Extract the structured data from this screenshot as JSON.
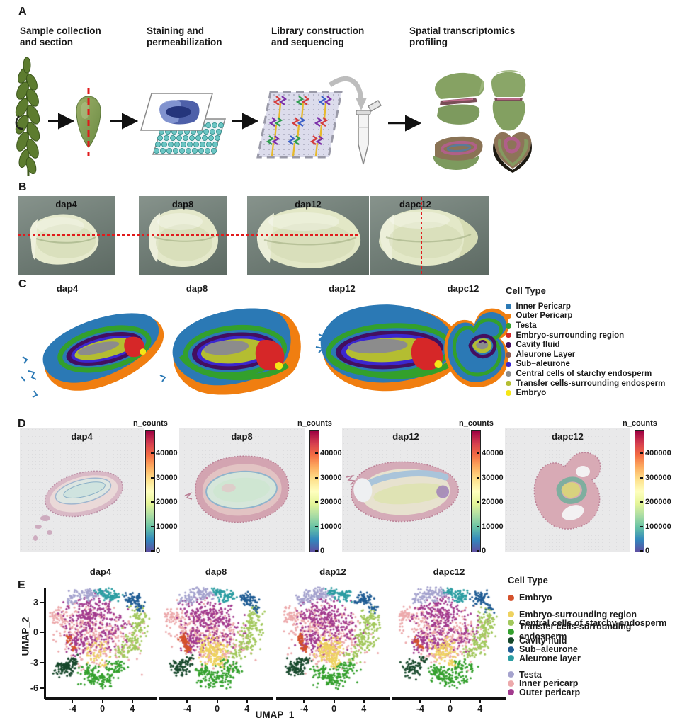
{
  "panel_a": {
    "label": "A",
    "steps": [
      {
        "line1": "Sample collection",
        "line2": " and section"
      },
      {
        "line1": "Staining and",
        "line2": "permeabilization"
      },
      {
        "line1": "Library construction",
        "line2": " and sequencing"
      },
      {
        "line1": "Spatial transcriptomics",
        "line2": "profiling"
      }
    ]
  },
  "panel_b": {
    "label": "B",
    "photos": [
      {
        "label": "dap4"
      },
      {
        "label": "dap8"
      },
      {
        "label": "dap12"
      },
      {
        "label": "dapc12"
      }
    ],
    "section_line_color": "#e01b1c"
  },
  "panel_c": {
    "label": "C",
    "titles": [
      "dap4",
      "dap8",
      "dap12",
      "dapc12"
    ],
    "legend": {
      "title": "Cell Type",
      "items": [
        {
          "label": "Inner Pericarp",
          "color": "#2b79b5"
        },
        {
          "label": "Outer Pericarp",
          "color": "#f07e10"
        },
        {
          "label": "Testa",
          "color": "#33a02c"
        },
        {
          "label": "Embryo-surrounding region",
          "color": "#d62728"
        },
        {
          "label": "Cavity fluid",
          "color": "#440f5f"
        },
        {
          "label": "Aleurone Layer",
          "color": "#8d5a50"
        },
        {
          "label": "Sub−aleurone",
          "color": "#3b27cf"
        },
        {
          "label": "Central cells of starchy endosperm",
          "color": "#8c8c8c"
        },
        {
          "label": "Transfer cells-surrounding endosperm",
          "color": "#b4bd31"
        },
        {
          "label": "Embryo",
          "color": "#f5e616"
        }
      ]
    }
  },
  "panel_d": {
    "label": "D",
    "plots": [
      {
        "title": "dap4",
        "colorbar_label": "n_counts",
        "ticks": [
          "40000",
          "30000",
          "20000",
          "10000",
          "0"
        ]
      },
      {
        "title": "dap8",
        "colorbar_label": "n_counts",
        "ticks": [
          "40000",
          "30000",
          "20000",
          "10000",
          "0"
        ]
      },
      {
        "title": "dap12",
        "colorbar_label": "n_counts",
        "ticks": [
          "40000",
          "30000",
          "20000",
          "10000",
          "0"
        ]
      },
      {
        "title": "dapc12",
        "colorbar_label": "n_counts",
        "ticks": [
          "400000",
          "300000",
          "200000",
          "100000",
          "0"
        ]
      }
    ],
    "colormap": [
      "#5e4fa2",
      "#3288bd",
      "#66c2a5",
      "#abdda4",
      "#e6f598",
      "#ffffbf",
      "#fee08b",
      "#fdae61",
      "#f46d43",
      "#d53e4f",
      "#9e0142"
    ]
  },
  "panel_e": {
    "label": "E",
    "titles": [
      "dap4",
      "dap8",
      "dap12",
      "dapc12"
    ],
    "x_axis": {
      "label": "UMAP_1",
      "ticks": [
        "-4",
        "0",
        "4"
      ]
    },
    "y_axis": {
      "label": "UMAP_2",
      "ticks": [
        "3",
        "0",
        "-3",
        "-6"
      ]
    },
    "legend": {
      "title": "Cell Type",
      "groups": [
        {
          "items": [
            {
              "label": "Embryo",
              "color": "#d4512b"
            }
          ]
        },
        {
          "items": [
            {
              "label": "Embryo-surrounding region",
              "color": "#eed25f"
            },
            {
              "label": "Central cells of starchy endosperm",
              "color": "#a2c85c"
            },
            {
              "label": "Transfer cells-surrounding endosperm",
              "color": "#34a02d"
            },
            {
              "label": "Cavity fluid",
              "color": "#16482b"
            },
            {
              "label": "Sub−aleurone",
              "color": "#1f5c94"
            },
            {
              "label": "Aleurone layer",
              "color": "#2b9da2"
            }
          ]
        },
        {
          "items": [
            {
              "label": "Testa",
              "color": "#a5a3ce"
            },
            {
              "label": "Inner pericarp",
              "color": "#eca9ab"
            },
            {
              "label": "Outer pericarp",
              "color": "#a23a8e"
            }
          ]
        }
      ]
    },
    "scatter": {
      "clusters": [
        {
          "name": "inner_pericarp",
          "color": "#eca9ab",
          "count": 400,
          "blobs": [
            [
              0.3,
              0.38,
              0.26,
              0.2,
              0.4
            ],
            [
              0.08,
              0.28,
              0.1,
              0.07,
              0.12
            ],
            [
              0.55,
              0.5,
              0.28,
              0.22,
              0.38
            ],
            [
              0.42,
              0.66,
              0.18,
              0.1,
              0.1
            ]
          ]
        },
        {
          "name": "outer_pericarp",
          "color": "#a23a8e",
          "count": 340,
          "blobs": [
            [
              0.4,
              0.25,
              0.22,
              0.13,
              0.45
            ],
            [
              0.52,
              0.42,
              0.26,
              0.18,
              0.35
            ],
            [
              0.28,
              0.52,
              0.12,
              0.1,
              0.2
            ]
          ]
        },
        {
          "name": "testa",
          "color": "#a5a3ce",
          "count": 110,
          "blobs": [
            [
              0.36,
              0.07,
              0.13,
              0.055,
              0.75
            ],
            [
              0.22,
              0.13,
              0.07,
              0.045,
              0.25
            ]
          ]
        },
        {
          "name": "central",
          "color": "#a2c85c",
          "count": 170,
          "blobs": [
            [
              0.86,
              0.33,
              0.08,
              0.12,
              0.45
            ],
            [
              0.8,
              0.52,
              0.09,
              0.11,
              0.4
            ],
            [
              0.7,
              0.64,
              0.08,
              0.06,
              0.15
            ]
          ]
        },
        {
          "name": "aleurone",
          "color": "#2b9da2",
          "count": 75,
          "blobs": [
            [
              0.6,
              0.09,
              0.08,
              0.05,
              0.7
            ],
            [
              0.5,
              0.05,
              0.05,
              0.035,
              0.3
            ]
          ]
        },
        {
          "name": "sub_aleurone",
          "color": "#1f5c94",
          "count": 75,
          "blobs": [
            [
              0.8,
              0.12,
              0.08,
              0.055,
              0.8
            ],
            [
              0.88,
              0.2,
              0.05,
              0.04,
              0.2
            ]
          ]
        },
        {
          "name": "esr",
          "color": "#eed25f",
          "count": 120,
          "blobs": [
            [
              0.46,
              0.6,
              0.11,
              0.1,
              0.8
            ],
            [
              0.52,
              0.72,
              0.06,
              0.05,
              0.2
            ]
          ]
        },
        {
          "name": "transfer",
          "color": "#34a02d",
          "count": 180,
          "blobs": [
            [
              0.5,
              0.87,
              0.16,
              0.075,
              0.55
            ],
            [
              0.64,
              0.76,
              0.1,
              0.06,
              0.25
            ],
            [
              0.38,
              0.8,
              0.08,
              0.05,
              0.2
            ]
          ]
        },
        {
          "name": "cavity",
          "color": "#16482b",
          "count": 95,
          "blobs": [
            [
              0.15,
              0.77,
              0.085,
              0.075,
              0.8
            ],
            [
              0.24,
              0.7,
              0.05,
              0.04,
              0.2
            ]
          ]
        },
        {
          "name": "embryo",
          "color": "#d4512b",
          "count": 45,
          "blobs": [
            [
              0.19,
              0.5,
              0.035,
              0.05,
              0.6
            ],
            [
              0.23,
              0.58,
              0.03,
              0.04,
              0.4
            ]
          ]
        }
      ],
      "variations": {
        "esr": [
          0.35,
          1.3,
          1.4,
          0.8
        ],
        "embryo": [
          0.5,
          1.6,
          1.2,
          0.4
        ],
        "cavity": [
          1.2,
          0.9,
          1.0,
          0.8
        ],
        "testa": [
          0.8,
          1.0,
          1.1,
          1.0
        ]
      },
      "seeds": [
        3,
        17,
        29,
        41
      ]
    }
  }
}
